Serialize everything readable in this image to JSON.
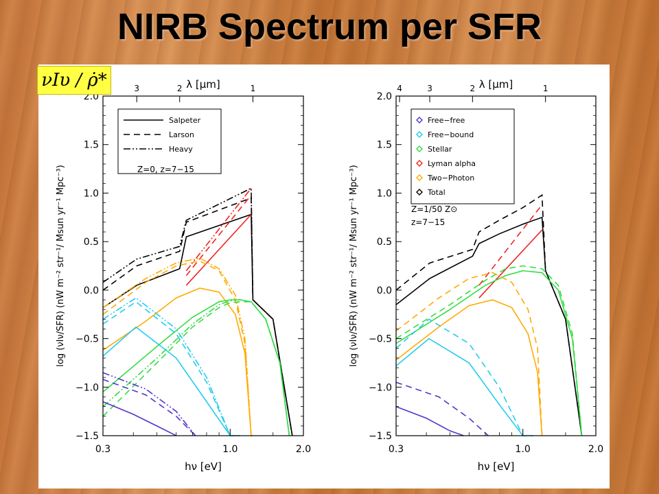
{
  "slide": {
    "title": "NIRB Spectrum per SFR",
    "formula": "νIυ / ρ̇*"
  },
  "chart_data": [
    {
      "type": "line",
      "panel": "left",
      "xscale": "log",
      "xlim": [
        0.3,
        2.0
      ],
      "ylim": [
        -1.5,
        2.0
      ],
      "x_ticks": [
        {
          "v": 0.3,
          "label": "0.3"
        },
        {
          "v": 1.0,
          "label": "1.0"
        },
        {
          "v": 2.0,
          "label": "2.0"
        }
      ],
      "y_ticks": [
        {
          "v": -1.5,
          "label": "−1.5"
        },
        {
          "v": -1.0,
          "label": "−1.0"
        },
        {
          "v": -0.5,
          "label": "−0.5"
        },
        {
          "v": 0.0,
          "label": "0.0"
        },
        {
          "v": 0.5,
          "label": "0.5"
        },
        {
          "v": 1.0,
          "label": "1.0"
        },
        {
          "v": 1.5,
          "label": "1.5"
        },
        {
          "v": 2.0,
          "label": "2.0"
        }
      ],
      "top_axis_label": "λ [μm]",
      "top_ticks": [
        {
          "label": "3",
          "v": 0.413
        },
        {
          "label": "2",
          "v": 0.62
        },
        {
          "label": "1",
          "v": 1.24
        }
      ],
      "xlabel": "hν [eV]",
      "ylabel": "log (νIν/SFR) (nW m⁻² str⁻¹/ Msun yr⁻¹ Mpc⁻³)",
      "annotation": "Z=0, z=7−15",
      "legend": {
        "placement": "top-left",
        "entries": [
          {
            "label": "Salpeter",
            "dash": "solid"
          },
          {
            "label": "Larson",
            "dash": "dashed"
          },
          {
            "label": "Heavy",
            "dash": "dashdotdot"
          }
        ]
      },
      "series": [
        {
          "name": "Salpeter",
          "color": "#000000",
          "dash": "solid",
          "x": [
            0.3,
            0.413,
            0.62,
            0.66,
            1.22,
            1.24,
            1.5,
            1.8
          ],
          "y": [
            -0.18,
            0.05,
            0.22,
            0.55,
            0.78,
            -0.1,
            -0.3,
            -1.5
          ]
        },
        {
          "name": "Larson",
          "color": "#000000",
          "dash": "dashed",
          "x": [
            0.3,
            0.413,
            0.62,
            0.66,
            1.22,
            1.24,
            1.5,
            1.8
          ],
          "y": [
            0.0,
            0.25,
            0.4,
            0.7,
            0.95,
            -0.1,
            -0.3,
            -1.5
          ]
        },
        {
          "name": "Heavy",
          "color": "#000000",
          "dash": "dashdotdot",
          "x": [
            0.3,
            0.413,
            0.62,
            0.66,
            1.22,
            1.24,
            1.5,
            1.8
          ],
          "y": [
            0.08,
            0.32,
            0.45,
            0.72,
            1.05,
            -0.1,
            -0.3,
            -1.5
          ]
        },
        {
          "color": "#ee2222",
          "dash": "solid",
          "x": [
            0.66,
            1.22
          ],
          "y": [
            0.05,
            0.78
          ]
        },
        {
          "color": "#ee2222",
          "dash": "dashed",
          "x": [
            0.66,
            1.22
          ],
          "y": [
            0.15,
            0.98
          ]
        },
        {
          "color": "#ee2222",
          "dash": "dashdotdot",
          "x": [
            0.66,
            1.22
          ],
          "y": [
            0.2,
            1.05
          ]
        },
        {
          "color": "#ffaa00",
          "dash": "solid",
          "x": [
            0.3,
            0.45,
            0.6,
            0.75,
            0.9,
            1.05,
            1.15,
            1.22,
            1.24
          ],
          "y": [
            -0.62,
            -0.32,
            -0.08,
            0.02,
            -0.02,
            -0.25,
            -0.65,
            -1.5,
            -1.5
          ]
        },
        {
          "color": "#ffaa00",
          "dash": "dashed",
          "x": [
            0.3,
            0.45,
            0.6,
            0.75,
            0.9,
            1.05,
            1.15,
            1.22,
            1.24
          ],
          "y": [
            -0.25,
            0.08,
            0.25,
            0.3,
            0.2,
            -0.1,
            -0.55,
            -1.5,
            -1.5
          ]
        },
        {
          "color": "#ffaa00",
          "dash": "dashdotdot",
          "x": [
            0.3,
            0.45,
            0.6,
            0.75,
            0.9,
            1.05,
            1.15,
            1.22,
            1.24
          ],
          "y": [
            -0.18,
            0.12,
            0.28,
            0.33,
            0.22,
            -0.05,
            -0.5,
            -1.5,
            -1.5
          ]
        },
        {
          "color": "#22ccee",
          "dash": "solid",
          "x": [
            0.3,
            0.41,
            0.6,
            0.8,
            1.0,
            1.1
          ],
          "y": [
            -0.68,
            -0.38,
            -0.7,
            -1.15,
            -1.5,
            -1.5
          ]
        },
        {
          "color": "#22ccee",
          "dash": "dashed",
          "x": [
            0.3,
            0.41,
            0.6,
            0.8,
            1.0,
            1.1
          ],
          "y": [
            -0.35,
            -0.12,
            -0.45,
            -0.95,
            -1.5,
            -1.5
          ]
        },
        {
          "color": "#22ccee",
          "dash": "dashdotdot",
          "x": [
            0.3,
            0.41,
            0.6,
            0.8,
            1.0,
            1.1
          ],
          "y": [
            -0.3,
            -0.08,
            -0.4,
            -0.9,
            -1.5,
            -1.5
          ]
        },
        {
          "color": "#33dd44",
          "dash": "solid",
          "x": [
            0.3,
            0.5,
            0.7,
            0.9,
            1.0,
            1.1,
            1.22,
            1.4,
            1.6,
            1.75
          ],
          "y": [
            -1.05,
            -0.58,
            -0.28,
            -0.12,
            -0.1,
            -0.1,
            -0.12,
            -0.3,
            -0.75,
            -1.5
          ]
        },
        {
          "color": "#33dd44",
          "dash": "dashed",
          "x": [
            0.3,
            0.5,
            0.7,
            0.9,
            1.0,
            1.1,
            1.22,
            1.4,
            1.6,
            1.75
          ],
          "y": [
            -1.3,
            -0.75,
            -0.38,
            -0.18,
            -0.13,
            -0.12,
            -0.12,
            -0.3,
            -0.75,
            -1.5
          ]
        },
        {
          "color": "#33dd44",
          "dash": "dashdotdot",
          "x": [
            0.3,
            0.5,
            0.7,
            0.9,
            1.0,
            1.1,
            1.22,
            1.4,
            1.6,
            1.75
          ],
          "y": [
            -1.2,
            -0.7,
            -0.35,
            -0.15,
            -0.11,
            -0.1,
            -0.12,
            -0.3,
            -0.75,
            -1.5
          ]
        },
        {
          "color": "#5533cc",
          "dash": "solid",
          "x": [
            0.3,
            0.4,
            0.5,
            0.6
          ],
          "y": [
            -1.15,
            -1.28,
            -1.4,
            -1.5
          ]
        },
        {
          "color": "#5533cc",
          "dash": "dashed",
          "x": [
            0.3,
            0.45,
            0.6,
            0.72
          ],
          "y": [
            -0.92,
            -1.08,
            -1.3,
            -1.5
          ]
        },
        {
          "color": "#5533cc",
          "dash": "dashdotdot",
          "x": [
            0.3,
            0.45,
            0.6,
            0.72
          ],
          "y": [
            -0.85,
            -1.02,
            -1.25,
            -1.5
          ]
        }
      ]
    },
    {
      "type": "line",
      "panel": "right",
      "xscale": "log",
      "xlim": [
        0.3,
        2.0
      ],
      "ylim": [
        -1.5,
        2.0
      ],
      "x_ticks": [
        {
          "v": 0.3,
          "label": "0.3"
        },
        {
          "v": 1.0,
          "label": "1.0"
        },
        {
          "v": 2.0,
          "label": "2.0"
        }
      ],
      "y_ticks": [
        {
          "v": -1.5,
          "label": "−1.5"
        },
        {
          "v": -1.0,
          "label": "−1.0"
        },
        {
          "v": -0.5,
          "label": "−0.5"
        },
        {
          "v": 0.0,
          "label": "0.0"
        },
        {
          "v": 0.5,
          "label": "0.5"
        },
        {
          "v": 1.0,
          "label": "1.0"
        },
        {
          "v": 1.5,
          "label": "1.5"
        },
        {
          "v": 2.0,
          "label": "2.0"
        }
      ],
      "top_axis_label": "λ [μm]",
      "top_ticks": [
        {
          "label": "4",
          "v": 0.31
        },
        {
          "label": "3",
          "v": 0.413
        },
        {
          "label": "2",
          "v": 0.62
        },
        {
          "label": "1",
          "v": 1.24
        }
      ],
      "xlabel": "hν [eV]",
      "ylabel": "log (νIν/SFR) (nW m⁻² str⁻¹/ Msun yr⁻¹ Mpc⁻³)",
      "annotation_lines": [
        "Z=1/50 Z⊙",
        "z=7−15"
      ],
      "legend": {
        "placement": "top-left",
        "entries": [
          {
            "label": "Free−free",
            "color": "#5533cc"
          },
          {
            "label": "Free−bound",
            "color": "#22ccee"
          },
          {
            "label": "Stellar",
            "color": "#33dd44"
          },
          {
            "label": "Lyman alpha",
            "color": "#ee2222"
          },
          {
            "label": "Two−Photon",
            "color": "#ffaa00"
          },
          {
            "label": "Total",
            "color": "#000000"
          }
        ]
      },
      "series": [
        {
          "color": "#000000",
          "dash": "solid",
          "x": [
            0.3,
            0.413,
            0.62,
            0.66,
            0.8,
            1.0,
            1.2,
            1.24,
            1.5,
            1.75
          ],
          "y": [
            -0.15,
            0.12,
            0.35,
            0.48,
            0.58,
            0.68,
            0.75,
            0.2,
            -0.3,
            -1.5
          ]
        },
        {
          "color": "#000000",
          "dash": "dashed",
          "x": [
            0.3,
            0.413,
            0.62,
            0.66,
            0.8,
            1.0,
            1.2,
            1.24,
            1.5,
            1.75
          ],
          "y": [
            0.0,
            0.28,
            0.42,
            0.6,
            0.72,
            0.85,
            0.98,
            0.2,
            -0.3,
            -1.5
          ]
        },
        {
          "color": "#ee2222",
          "dash": "solid",
          "x": [
            0.66,
            1.2
          ],
          "y": [
            -0.08,
            0.62
          ]
        },
        {
          "color": "#ee2222",
          "dash": "dashed",
          "x": [
            0.66,
            1.2
          ],
          "y": [
            0.05,
            0.88
          ]
        },
        {
          "color": "#33dd44",
          "dash": "solid",
          "x": [
            0.3,
            0.5,
            0.7,
            0.85,
            1.0,
            1.2,
            1.4,
            1.6,
            1.75
          ],
          "y": [
            -0.55,
            -0.2,
            0.05,
            0.15,
            0.2,
            0.18,
            0.0,
            -0.5,
            -1.5
          ]
        },
        {
          "color": "#33dd44",
          "dash": "dashed",
          "x": [
            0.3,
            0.5,
            0.7,
            0.85,
            1.0,
            1.2,
            1.4,
            1.6,
            1.75
          ],
          "y": [
            -0.5,
            -0.15,
            0.1,
            0.22,
            0.25,
            0.22,
            0.05,
            -0.45,
            -1.5
          ]
        },
        {
          "color": "#ffaa00",
          "dash": "solid",
          "x": [
            0.3,
            0.45,
            0.6,
            0.75,
            0.9,
            1.05,
            1.15,
            1.2
          ],
          "y": [
            -0.72,
            -0.38,
            -0.16,
            -0.1,
            -0.18,
            -0.45,
            -0.85,
            -1.5
          ]
        },
        {
          "color": "#ffaa00",
          "dash": "dashed",
          "x": [
            0.3,
            0.45,
            0.6,
            0.75,
            0.9,
            1.05,
            1.15,
            1.2
          ],
          "y": [
            -0.42,
            -0.08,
            0.12,
            0.18,
            0.08,
            -0.2,
            -0.6,
            -1.5
          ]
        },
        {
          "color": "#22ccee",
          "dash": "solid",
          "x": [
            0.3,
            0.41,
            0.6,
            0.8,
            1.0,
            1.1
          ],
          "y": [
            -0.78,
            -0.5,
            -0.75,
            -1.18,
            -1.5,
            -1.5
          ]
        },
        {
          "color": "#22ccee",
          "dash": "dashed",
          "x": [
            0.3,
            0.41,
            0.6,
            0.8,
            1.0,
            1.1
          ],
          "y": [
            -0.6,
            -0.3,
            -0.55,
            -1.0,
            -1.5,
            -1.5
          ]
        },
        {
          "color": "#5533cc",
          "dash": "solid",
          "x": [
            0.3,
            0.4,
            0.5,
            0.57
          ],
          "y": [
            -1.2,
            -1.32,
            -1.45,
            -1.5
          ]
        },
        {
          "color": "#5533cc",
          "dash": "dashed",
          "x": [
            0.3,
            0.45,
            0.6,
            0.72
          ],
          "y": [
            -0.95,
            -1.1,
            -1.32,
            -1.5
          ]
        }
      ]
    }
  ]
}
